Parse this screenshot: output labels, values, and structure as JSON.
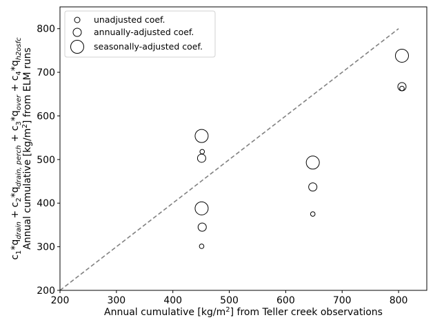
{
  "chart_data": {
    "type": "scatter",
    "xlabel_prefix": "Annual cumulative [kg/m",
    "xlabel_sup": "2",
    "xlabel_suffix": "] from Teller creek observations",
    "ylabel_line1": "c₁*q_drain + c₂*q_drain, perch + c₃*q_over + c₄*q_h2osfc",
    "ylabel_line2_prefix": "Annual cumulative [kg/m",
    "ylabel_line2_sup": "2",
    "ylabel_line2_suffix": "] from ELM runs",
    "xlim": [
      200,
      850
    ],
    "ylim": [
      200,
      850
    ],
    "xticks": [
      200,
      300,
      400,
      500,
      600,
      700,
      800
    ],
    "yticks": [
      200,
      300,
      400,
      500,
      600,
      700,
      800
    ],
    "grid": false,
    "legend_position": "top-left",
    "one_to_one_line": {
      "from": [
        200,
        200
      ],
      "to": [
        800,
        800
      ],
      "style": "dashed",
      "color": "#808080"
    },
    "series": [
      {
        "name": "unadjusted coef.",
        "marker_size": "small",
        "points": [
          {
            "x": 452,
            "y": 518
          },
          {
            "x": 451,
            "y": 301
          },
          {
            "x": 648,
            "y": 375
          },
          {
            "x": 806,
            "y": 663
          }
        ]
      },
      {
        "name": "annually-adjusted coef.",
        "marker_size": "medium",
        "points": [
          {
            "x": 451,
            "y": 503
          },
          {
            "x": 452,
            "y": 345
          },
          {
            "x": 648,
            "y": 437
          },
          {
            "x": 806,
            "y": 667
          }
        ]
      },
      {
        "name": "seasonally-adjusted coef.",
        "marker_size": "large",
        "points": [
          {
            "x": 451,
            "y": 554
          },
          {
            "x": 451,
            "y": 388
          },
          {
            "x": 648,
            "y": 493
          },
          {
            "x": 806,
            "y": 738
          }
        ]
      }
    ],
    "colors": {
      "marker_edge": "#000000",
      "marker_fill": "none",
      "diagonal": "#808080"
    }
  }
}
